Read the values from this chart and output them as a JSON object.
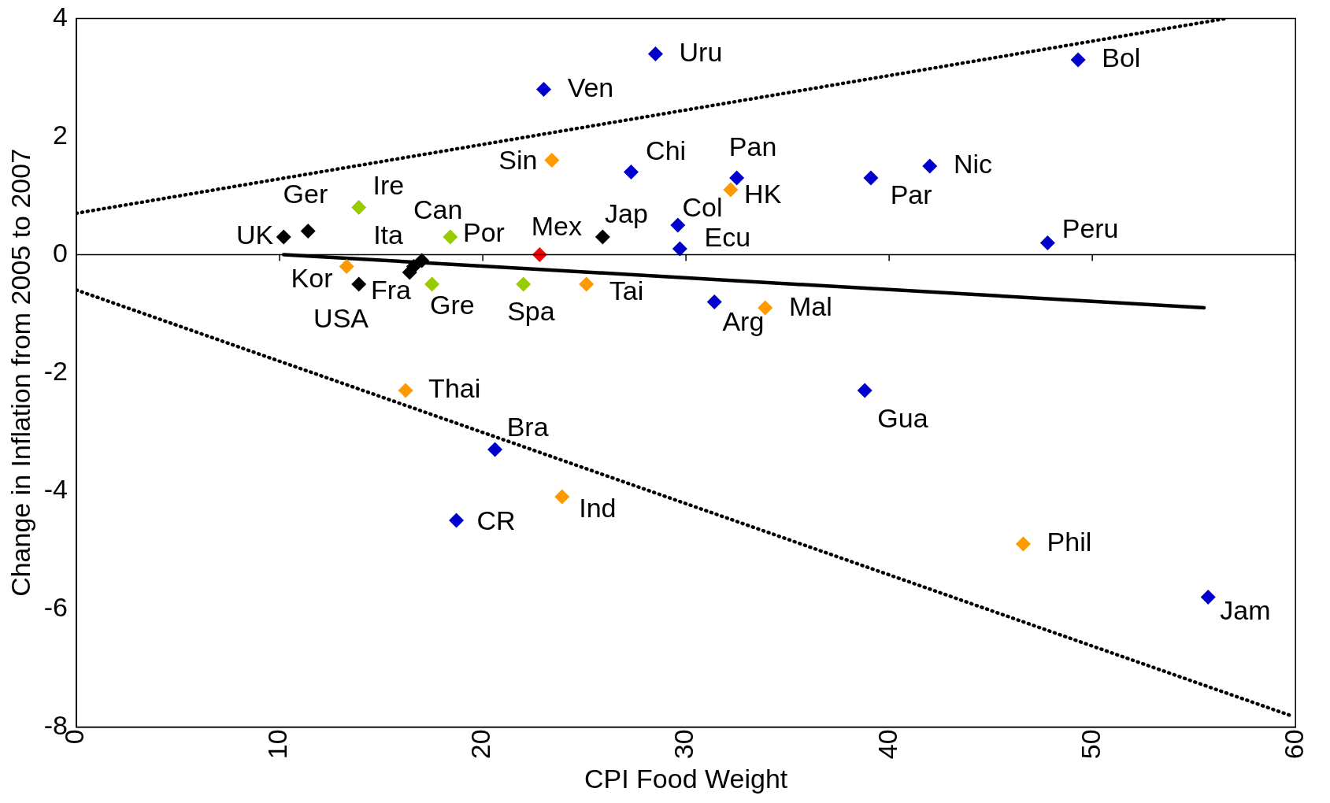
{
  "chart_data": {
    "type": "scatter",
    "xlabel": "CPI Food Weight",
    "ylabel": "Change in Inflation from 2005 to 2007",
    "xlim": [
      0,
      60
    ],
    "xticks": [
      0,
      10,
      20,
      30,
      40,
      50,
      60
    ],
    "ylim": [
      -8,
      4
    ],
    "yticks": [
      -8,
      -6,
      -4,
      -2,
      0,
      2,
      4
    ],
    "grid": false,
    "legend": false,
    "marker": "diamond",
    "ref_lines": [
      {
        "axis": "y",
        "value": 0,
        "color": "#000000"
      }
    ],
    "series": [
      {
        "color": "#000000",
        "x": [
          10.2,
          11.4,
          16.6,
          17.0,
          16.4,
          13.9,
          25.9
        ],
        "values": [
          0.3,
          0.4,
          -0.2,
          -0.1,
          -0.3,
          -0.5,
          0.3
        ]
      },
      {
        "color": "#99cc00",
        "x": [
          13.9,
          18.4,
          17.5,
          22.0
        ],
        "values": [
          0.8,
          0.3,
          -0.5,
          -0.5
        ]
      },
      {
        "color": "#ff9900",
        "x": [
          23.4,
          32.2,
          13.3,
          25.1,
          33.9,
          16.2,
          23.9,
          46.6
        ],
        "values": [
          1.6,
          1.1,
          -0.2,
          -0.5,
          -0.9,
          -2.3,
          -4.1,
          -4.9
        ]
      },
      {
        "color": "#ff0000",
        "x": [
          22.8
        ],
        "values": [
          0.0
        ]
      },
      {
        "color": "#0000cc",
        "x": [
          23.0,
          28.5,
          27.3,
          32.5,
          29.6,
          29.7,
          49.3,
          42.0,
          39.1,
          47.8,
          31.4,
          20.6,
          38.8,
          18.7,
          55.7
        ],
        "values": [
          2.8,
          3.4,
          1.4,
          1.3,
          0.5,
          0.1,
          3.3,
          1.5,
          1.3,
          0.2,
          -0.8,
          -3.3,
          -2.3,
          -4.5,
          -5.8
        ]
      },
      {
        "type": "line",
        "color": "#000000",
        "line_style": "solid",
        "marker": "none",
        "x": [
          10.2,
          55.5
        ],
        "values": [
          0.0,
          -0.9
        ]
      },
      {
        "type": "line",
        "color": "#000000",
        "line_style": "dotted",
        "marker": "none",
        "x": [
          0,
          56.6
        ],
        "values": [
          0.7,
          4.0
        ]
      },
      {
        "type": "line",
        "color": "#000000",
        "line_style": "dotted",
        "marker": "none",
        "x": [
          0,
          59.7
        ],
        "values": [
          -0.6,
          -7.8
        ]
      }
    ],
    "annotations": [
      {
        "text": "UK",
        "x": 10.2,
        "y": 0.3
      },
      {
        "text": "Ger",
        "x": 11.4,
        "y": 0.4
      },
      {
        "text": "Ita",
        "x": 16.6,
        "y": -0.2
      },
      {
        "text": "Can",
        "x": 17.0,
        "y": -0.1
      },
      {
        "text": "Fra",
        "x": 16.4,
        "y": -0.3
      },
      {
        "text": "USA",
        "x": 13.9,
        "y": -0.5
      },
      {
        "text": "Jap",
        "x": 25.9,
        "y": 0.3
      },
      {
        "text": "Ire",
        "x": 13.9,
        "y": 0.8
      },
      {
        "text": "Por",
        "x": 18.4,
        "y": 0.3
      },
      {
        "text": "Gre",
        "x": 17.5,
        "y": -0.5
      },
      {
        "text": "Spa",
        "x": 22.0,
        "y": -0.5
      },
      {
        "text": "Sin",
        "x": 23.4,
        "y": 1.6
      },
      {
        "text": "HK",
        "x": 32.2,
        "y": 1.1
      },
      {
        "text": "Kor",
        "x": 13.3,
        "y": -0.2
      },
      {
        "text": "Tai",
        "x": 25.1,
        "y": -0.5
      },
      {
        "text": "Mal",
        "x": 33.9,
        "y": -0.9
      },
      {
        "text": "Thai",
        "x": 16.2,
        "y": -2.3
      },
      {
        "text": "Ind",
        "x": 23.9,
        "y": -4.1
      },
      {
        "text": "Phil",
        "x": 46.6,
        "y": -4.9
      },
      {
        "text": "Mex",
        "x": 22.8,
        "y": 0.0
      },
      {
        "text": "Ven",
        "x": 23.0,
        "y": 2.8
      },
      {
        "text": "Uru",
        "x": 28.5,
        "y": 3.4
      },
      {
        "text": "Chi",
        "x": 27.3,
        "y": 1.4
      },
      {
        "text": "Pan",
        "x": 32.5,
        "y": 1.3
      },
      {
        "text": "Col",
        "x": 29.6,
        "y": 0.5
      },
      {
        "text": "Ecu",
        "x": 29.7,
        "y": 0.1
      },
      {
        "text": "Bol",
        "x": 49.3,
        "y": 3.3
      },
      {
        "text": "Nic",
        "x": 42.0,
        "y": 1.5
      },
      {
        "text": "Par",
        "x": 39.1,
        "y": 1.3
      },
      {
        "text": "Peru",
        "x": 47.8,
        "y": 0.2
      },
      {
        "text": "Arg",
        "x": 31.4,
        "y": -0.8
      },
      {
        "text": "Bra",
        "x": 20.6,
        "y": -3.3
      },
      {
        "text": "Gua",
        "x": 38.8,
        "y": -2.3
      },
      {
        "text": "CR",
        "x": 18.7,
        "y": -4.5
      },
      {
        "text": "Jam",
        "x": 55.7,
        "y": -5.8
      }
    ]
  }
}
